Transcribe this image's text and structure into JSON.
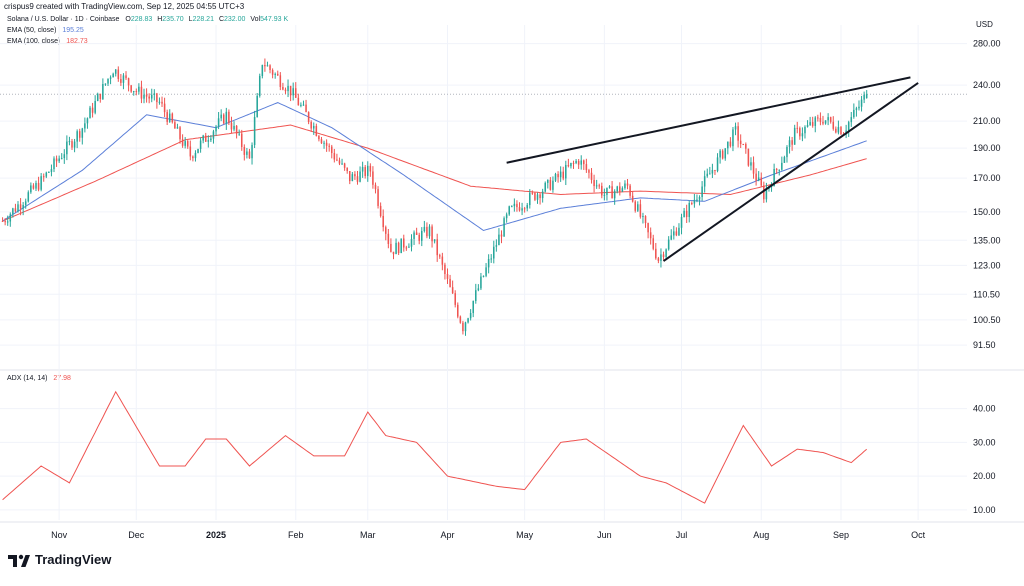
{
  "header": {
    "credit": "crispus9 created with TradingView.com, Sep 12, 2025 04:55 UTC+3"
  },
  "legend": {
    "symbol": "Solana / U.S. Dollar · 1D · Coinbase",
    "ohlc": [
      {
        "key": "O",
        "value": "228.83"
      },
      {
        "key": "H",
        "value": "235.70"
      },
      {
        "key": "L",
        "value": "228.21"
      },
      {
        "key": "C",
        "value": "232.00"
      },
      {
        "key": "Vol",
        "value": "547.93 K"
      }
    ],
    "ema50_label": "EMA (50, close)",
    "ema50_value": "195.25",
    "ema100_label": "EMA (100, close)",
    "ema100_value": "182.73",
    "adx_label": "ADX (14, 14)",
    "adx_value": "27.98"
  },
  "colors": {
    "up": "#26a69a",
    "down": "#ef5350",
    "ema50": "#5b7fd8",
    "ema100": "#ef5350",
    "adx": "#ef5350",
    "trendline": "#131722",
    "grid": "#f0f3fa",
    "axis_text": "#131722"
  },
  "currency_label": "USD",
  "branding": "TradingView",
  "chart_data": [
    {
      "type": "candlestick",
      "title": "Solana / U.S. Dollar · 1D · Coinbase",
      "y_scale": "log",
      "y_ticks": [
        280,
        240,
        210,
        190,
        170,
        150,
        135,
        123,
        110.5,
        100.5,
        91.5
      ],
      "y_tick_labels": [
        "280.00",
        "240.00",
        "210.00",
        "190.00",
        "170.00",
        "150.00",
        "135.00",
        "123.00",
        "110.50",
        "100.50",
        "91.50"
      ],
      "ylim": [
        85,
        300
      ],
      "last_price_line": 232,
      "x_tick_labels": [
        "Nov",
        "Dec",
        "2025",
        "Feb",
        "Mar",
        "Apr",
        "May",
        "Jun",
        "Jul",
        "Aug",
        "Sep",
        "Oct"
      ],
      "x_tick_dates": [
        "2024-11-01",
        "2024-12-01",
        "2025-01-01",
        "2025-02-01",
        "2025-03-01",
        "2025-04-01",
        "2025-05-01",
        "2025-06-01",
        "2025-07-01",
        "2025-08-01",
        "2025-09-01",
        "2025-10-01"
      ],
      "xlim": [
        "2024-10-09",
        "2025-10-20"
      ],
      "close_keypoints": [
        {
          "date": "2024-10-10",
          "close": 145
        },
        {
          "date": "2024-10-25",
          "close": 168
        },
        {
          "date": "2024-11-10",
          "close": 205
        },
        {
          "date": "2024-11-22",
          "close": 255
        },
        {
          "date": "2024-12-01",
          "close": 235
        },
        {
          "date": "2024-12-10",
          "close": 225
        },
        {
          "date": "2024-12-22",
          "close": 185
        },
        {
          "date": "2025-01-05",
          "close": 215
        },
        {
          "date": "2025-01-14",
          "close": 182
        },
        {
          "date": "2025-01-19",
          "close": 262
        },
        {
          "date": "2025-01-30",
          "close": 235
        },
        {
          "date": "2025-02-10",
          "close": 200
        },
        {
          "date": "2025-02-22",
          "close": 170
        },
        {
          "date": "2025-03-02",
          "close": 175
        },
        {
          "date": "2025-03-10",
          "close": 130
        },
        {
          "date": "2025-03-25",
          "close": 140
        },
        {
          "date": "2025-04-07",
          "close": 98
        },
        {
          "date": "2025-04-25",
          "close": 150
        },
        {
          "date": "2025-05-10",
          "close": 165
        },
        {
          "date": "2025-05-22",
          "close": 182
        },
        {
          "date": "2025-06-01",
          "close": 160
        },
        {
          "date": "2025-06-10",
          "close": 165
        },
        {
          "date": "2025-06-22",
          "close": 126
        },
        {
          "date": "2025-07-05",
          "close": 155
        },
        {
          "date": "2025-07-22",
          "close": 202
        },
        {
          "date": "2025-08-02",
          "close": 160
        },
        {
          "date": "2025-08-14",
          "close": 200
        },
        {
          "date": "2025-08-25",
          "close": 212
        },
        {
          "date": "2025-09-02",
          "close": 203
        },
        {
          "date": "2025-09-11",
          "close": 232
        }
      ],
      "ema50_keypoints": [
        {
          "date": "2024-10-10",
          "value": 145
        },
        {
          "date": "2024-11-10",
          "value": 175
        },
        {
          "date": "2024-12-05",
          "value": 215
        },
        {
          "date": "2025-01-01",
          "value": 205
        },
        {
          "date": "2025-01-25",
          "value": 225
        },
        {
          "date": "2025-02-15",
          "value": 205
        },
        {
          "date": "2025-03-15",
          "value": 172
        },
        {
          "date": "2025-04-15",
          "value": 140
        },
        {
          "date": "2025-05-15",
          "value": 152
        },
        {
          "date": "2025-06-15",
          "value": 158
        },
        {
          "date": "2025-07-10",
          "value": 156
        },
        {
          "date": "2025-08-05",
          "value": 172
        },
        {
          "date": "2025-09-11",
          "value": 195.25
        }
      ],
      "ema100_keypoints": [
        {
          "date": "2024-10-10",
          "value": 145
        },
        {
          "date": "2024-11-15",
          "value": 168
        },
        {
          "date": "2024-12-20",
          "value": 196
        },
        {
          "date": "2025-01-30",
          "value": 207
        },
        {
          "date": "2025-03-01",
          "value": 190
        },
        {
          "date": "2025-04-10",
          "value": 165
        },
        {
          "date": "2025-05-15",
          "value": 160
        },
        {
          "date": "2025-06-15",
          "value": 162
        },
        {
          "date": "2025-07-20",
          "value": 160
        },
        {
          "date": "2025-08-20",
          "value": 172
        },
        {
          "date": "2025-09-11",
          "value": 182.73
        }
      ],
      "trendlines": [
        {
          "name": "upper",
          "from": {
            "date": "2025-04-24",
            "value": 180
          },
          "to": {
            "date": "2025-09-28",
            "value": 247
          }
        },
        {
          "name": "lower",
          "from": {
            "date": "2025-06-24",
            "value": 125
          },
          "to": {
            "date": "2025-10-01",
            "value": 242
          }
        }
      ]
    },
    {
      "type": "line",
      "title": "ADX (14, 14)",
      "y_ticks": [
        40,
        30,
        20,
        10
      ],
      "y_tick_labels": [
        "40.00",
        "30.00",
        "20.00",
        "10.00"
      ],
      "ylim": [
        7,
        47
      ],
      "keypoints": [
        {
          "date": "2024-10-10",
          "value": 13
        },
        {
          "date": "2024-10-25",
          "value": 23
        },
        {
          "date": "2024-11-05",
          "value": 18
        },
        {
          "date": "2024-11-23",
          "value": 45
        },
        {
          "date": "2024-12-10",
          "value": 23
        },
        {
          "date": "2024-12-20",
          "value": 23
        },
        {
          "date": "2024-12-28",
          "value": 31
        },
        {
          "date": "2025-01-05",
          "value": 31
        },
        {
          "date": "2025-01-14",
          "value": 23
        },
        {
          "date": "2025-01-28",
          "value": 32
        },
        {
          "date": "2025-02-08",
          "value": 26
        },
        {
          "date": "2025-02-20",
          "value": 26
        },
        {
          "date": "2025-03-01",
          "value": 39
        },
        {
          "date": "2025-03-08",
          "value": 32
        },
        {
          "date": "2025-03-20",
          "value": 30
        },
        {
          "date": "2025-04-01",
          "value": 20
        },
        {
          "date": "2025-04-20",
          "value": 17
        },
        {
          "date": "2025-05-01",
          "value": 16
        },
        {
          "date": "2025-05-15",
          "value": 30
        },
        {
          "date": "2025-05-25",
          "value": 31
        },
        {
          "date": "2025-06-15",
          "value": 20
        },
        {
          "date": "2025-06-25",
          "value": 18
        },
        {
          "date": "2025-07-10",
          "value": 12
        },
        {
          "date": "2025-07-25",
          "value": 35
        },
        {
          "date": "2025-08-05",
          "value": 23
        },
        {
          "date": "2025-08-15",
          "value": 28
        },
        {
          "date": "2025-08-25",
          "value": 27
        },
        {
          "date": "2025-09-05",
          "value": 24
        },
        {
          "date": "2025-09-11",
          "value": 27.98
        }
      ],
      "x_tick_labels": [
        "Nov",
        "Dec",
        "2025",
        "Feb",
        "Mar",
        "Apr",
        "May",
        "Jun",
        "Jul",
        "Aug",
        "Sep",
        "Oct"
      ]
    }
  ]
}
